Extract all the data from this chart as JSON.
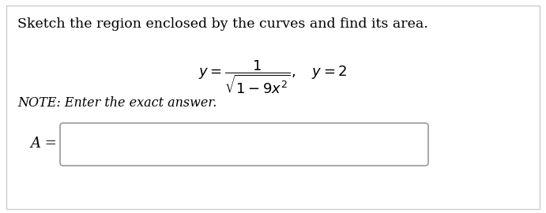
{
  "title": "Sketch the region enclosed by the curves and find its area.",
  "note": "NOTE: Enter the exact answer.",
  "label": "A =",
  "bg_color": "#ffffff",
  "outer_border_color": "#cccccc",
  "box_border_color": "#999999",
  "text_color": "#000000",
  "title_fontsize": 12.5,
  "formula_fontsize": 13,
  "note_fontsize": 11.5,
  "label_fontsize": 13
}
